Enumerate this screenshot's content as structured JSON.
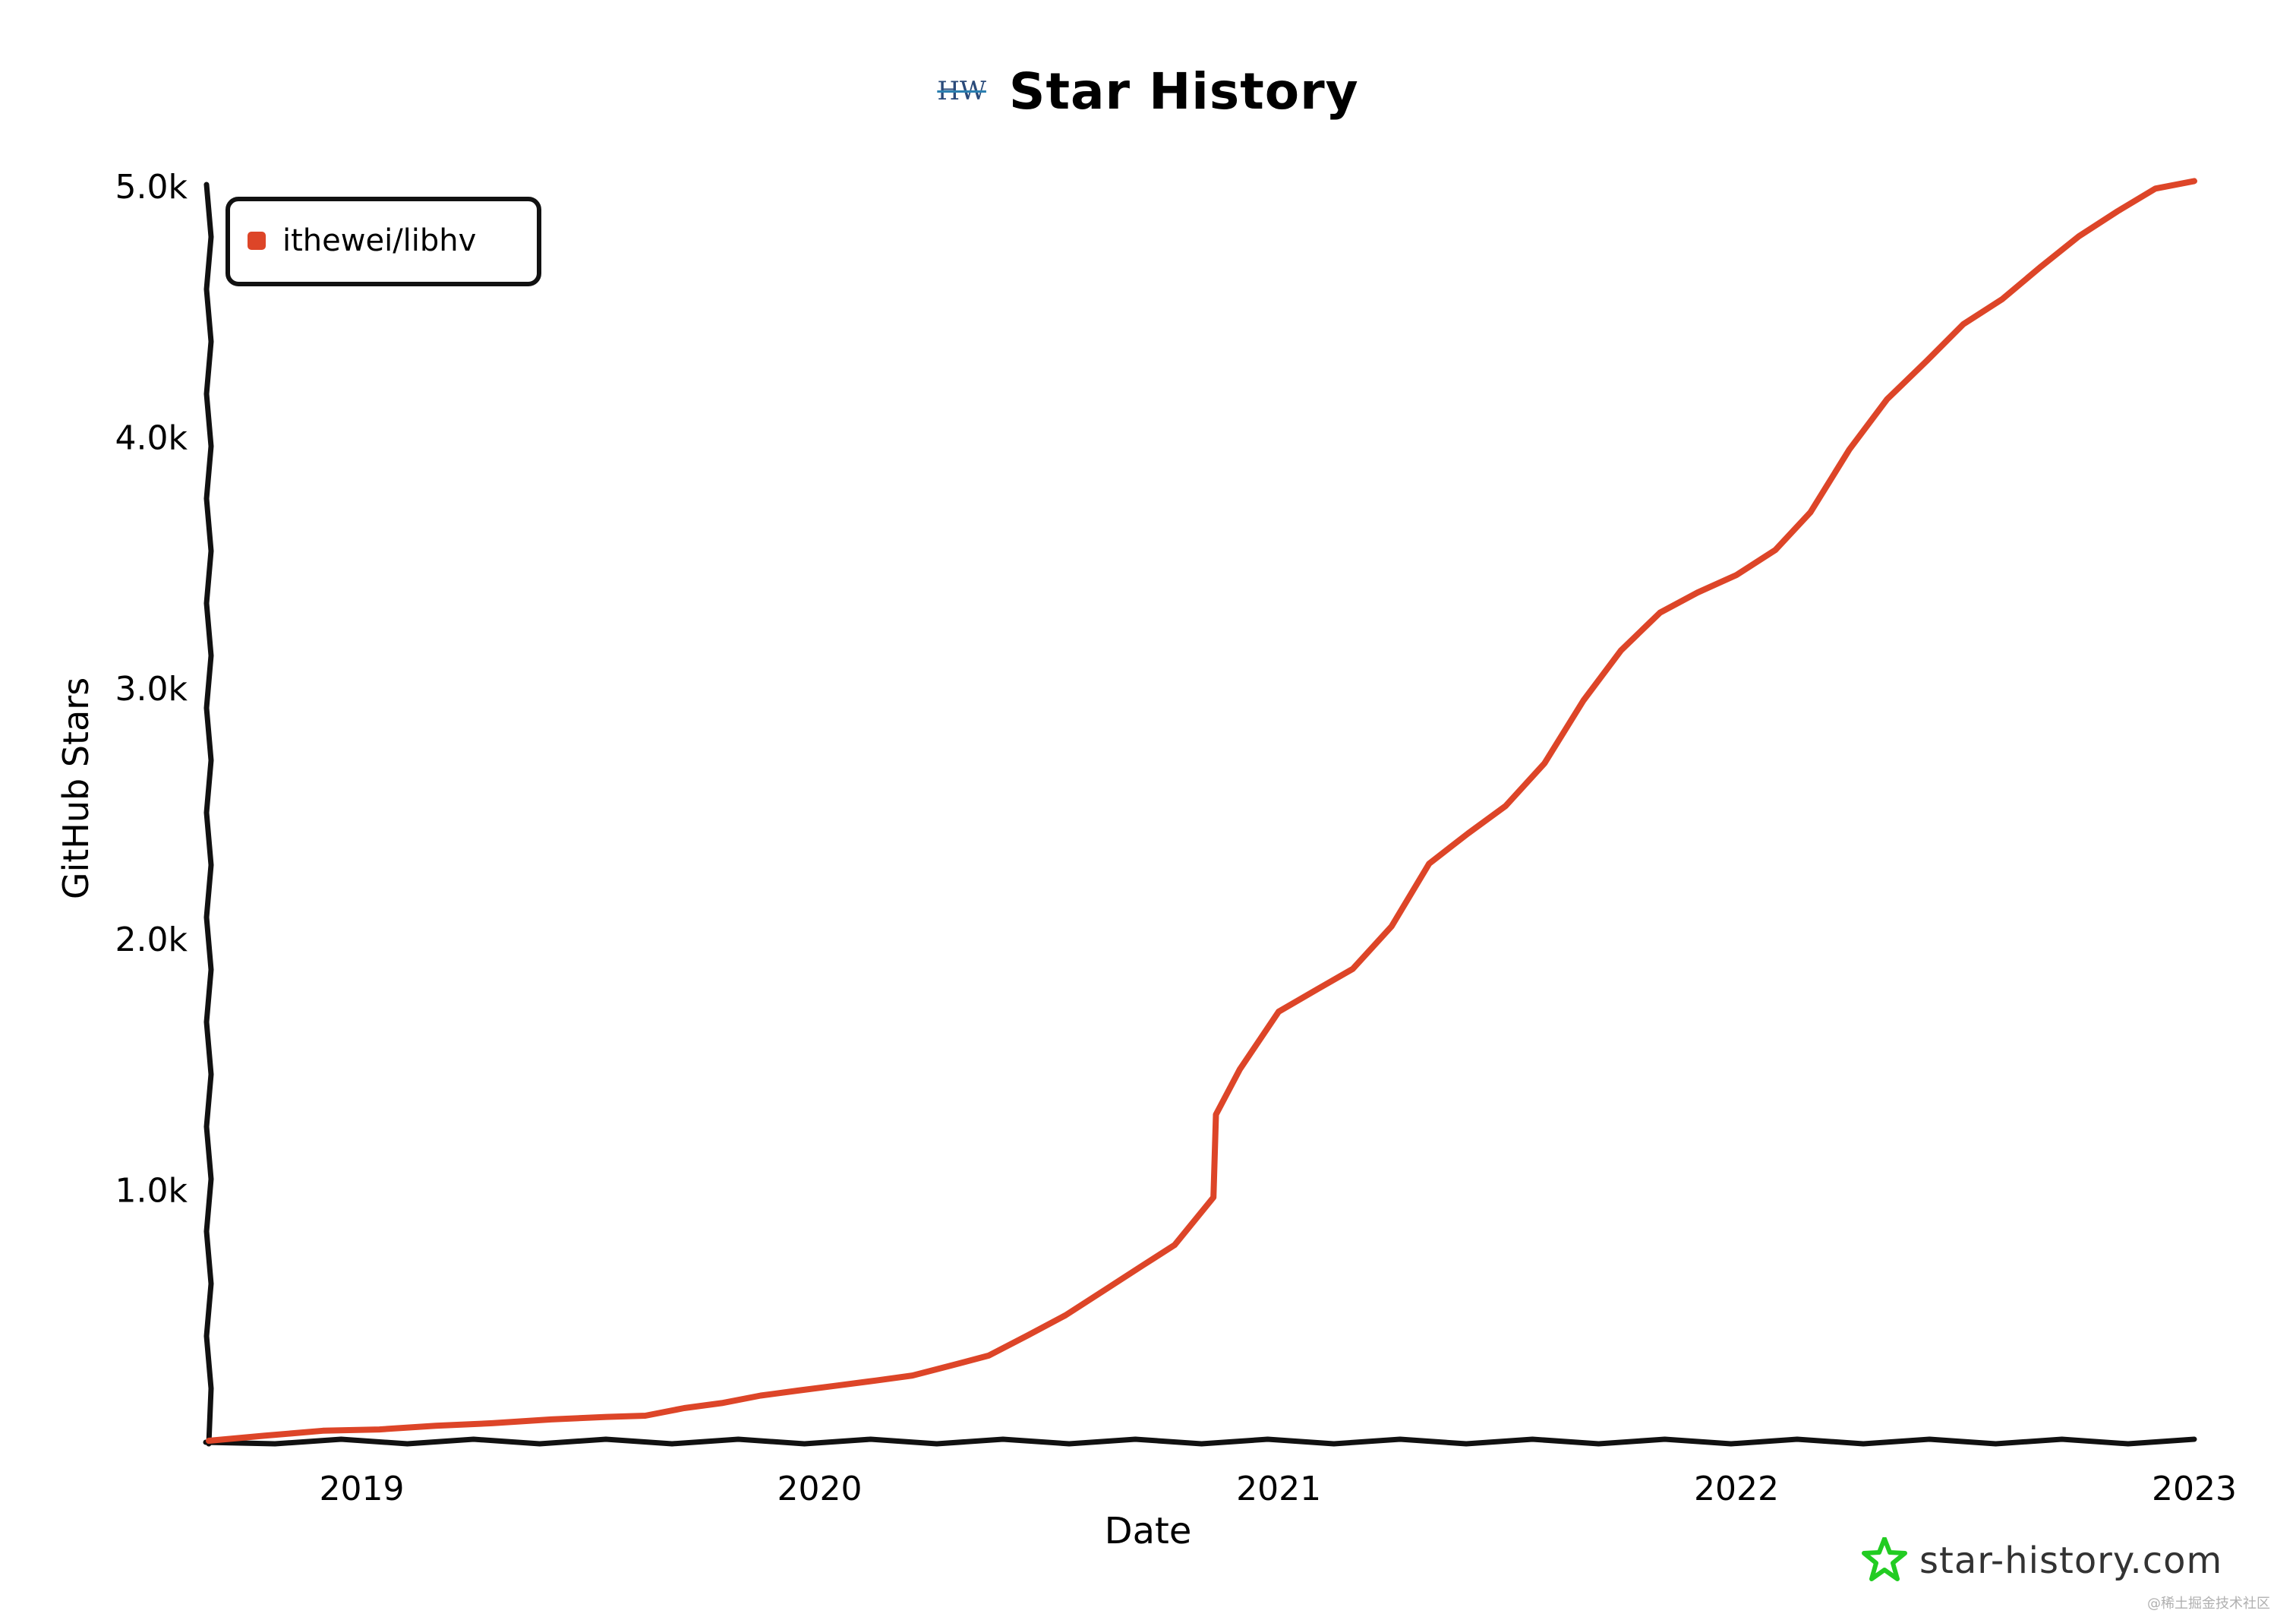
{
  "header": {
    "logo_text": "HW",
    "title": "Star History"
  },
  "chart_data": {
    "type": "line",
    "title": "Star History",
    "xlabel": "Date",
    "ylabel": "GitHub Stars",
    "x_ticks": [
      "2019",
      "2020",
      "2021",
      "2022",
      "2023"
    ],
    "y_ticks": [
      "1.0k",
      "2.0k",
      "3.0k",
      "4.0k",
      "5.0k"
    ],
    "xlim": [
      "2018-09-01",
      "2023-01-01"
    ],
    "ylim": [
      0,
      5000
    ],
    "grid": false,
    "legend_position": "top-left",
    "series": [
      {
        "name": "ithewei/libhv",
        "color": "#dd4528",
        "points": [
          [
            "2018-09-01",
            0
          ],
          [
            "2018-10-15",
            20
          ],
          [
            "2018-12-01",
            40
          ],
          [
            "2019-01-15",
            45
          ],
          [
            "2019-03-01",
            60
          ],
          [
            "2019-04-15",
            70
          ],
          [
            "2019-06-01",
            85
          ],
          [
            "2019-07-15",
            95
          ],
          [
            "2019-08-15",
            100
          ],
          [
            "2019-09-15",
            130
          ],
          [
            "2019-10-15",
            150
          ],
          [
            "2019-11-15",
            180
          ],
          [
            "2019-12-15",
            200
          ],
          [
            "2020-01-15",
            220
          ],
          [
            "2020-02-15",
            240
          ],
          [
            "2020-03-15",
            260
          ],
          [
            "2020-04-15",
            300
          ],
          [
            "2020-05-15",
            340
          ],
          [
            "2020-06-15",
            420
          ],
          [
            "2020-07-15",
            500
          ],
          [
            "2020-08-15",
            600
          ],
          [
            "2020-09-15",
            700
          ],
          [
            "2020-10-10",
            780
          ],
          [
            "2020-11-10",
            970
          ],
          [
            "2020-11-12",
            1300
          ],
          [
            "2020-12-01",
            1480
          ],
          [
            "2021-01-01",
            1710
          ],
          [
            "2021-02-01",
            1800
          ],
          [
            "2021-03-01",
            1880
          ],
          [
            "2021-04-01",
            2050
          ],
          [
            "2021-05-01",
            2300
          ],
          [
            "2021-06-01",
            2420
          ],
          [
            "2021-07-01",
            2530
          ],
          [
            "2021-08-01",
            2700
          ],
          [
            "2021-09-01",
            2950
          ],
          [
            "2021-10-01",
            3150
          ],
          [
            "2021-11-01",
            3300
          ],
          [
            "2021-12-01",
            3380
          ],
          [
            "2022-01-01",
            3450
          ],
          [
            "2022-02-01",
            3550
          ],
          [
            "2022-03-01",
            3700
          ],
          [
            "2022-04-01",
            3950
          ],
          [
            "2022-05-01",
            4150
          ],
          [
            "2022-06-01",
            4300
          ],
          [
            "2022-07-01",
            4450
          ],
          [
            "2022-08-01",
            4550
          ],
          [
            "2022-09-01",
            4680
          ],
          [
            "2022-10-01",
            4800
          ],
          [
            "2022-11-01",
            4900
          ],
          [
            "2022-12-01",
            4990
          ],
          [
            "2023-01-01",
            5020
          ]
        ]
      }
    ]
  },
  "footer": {
    "brand": "star-history.com",
    "watermark": "@稀土掘金技术社区"
  },
  "colors": {
    "series": "#dd4528",
    "axis": "#111111",
    "brand_icon": "#22cc22"
  }
}
